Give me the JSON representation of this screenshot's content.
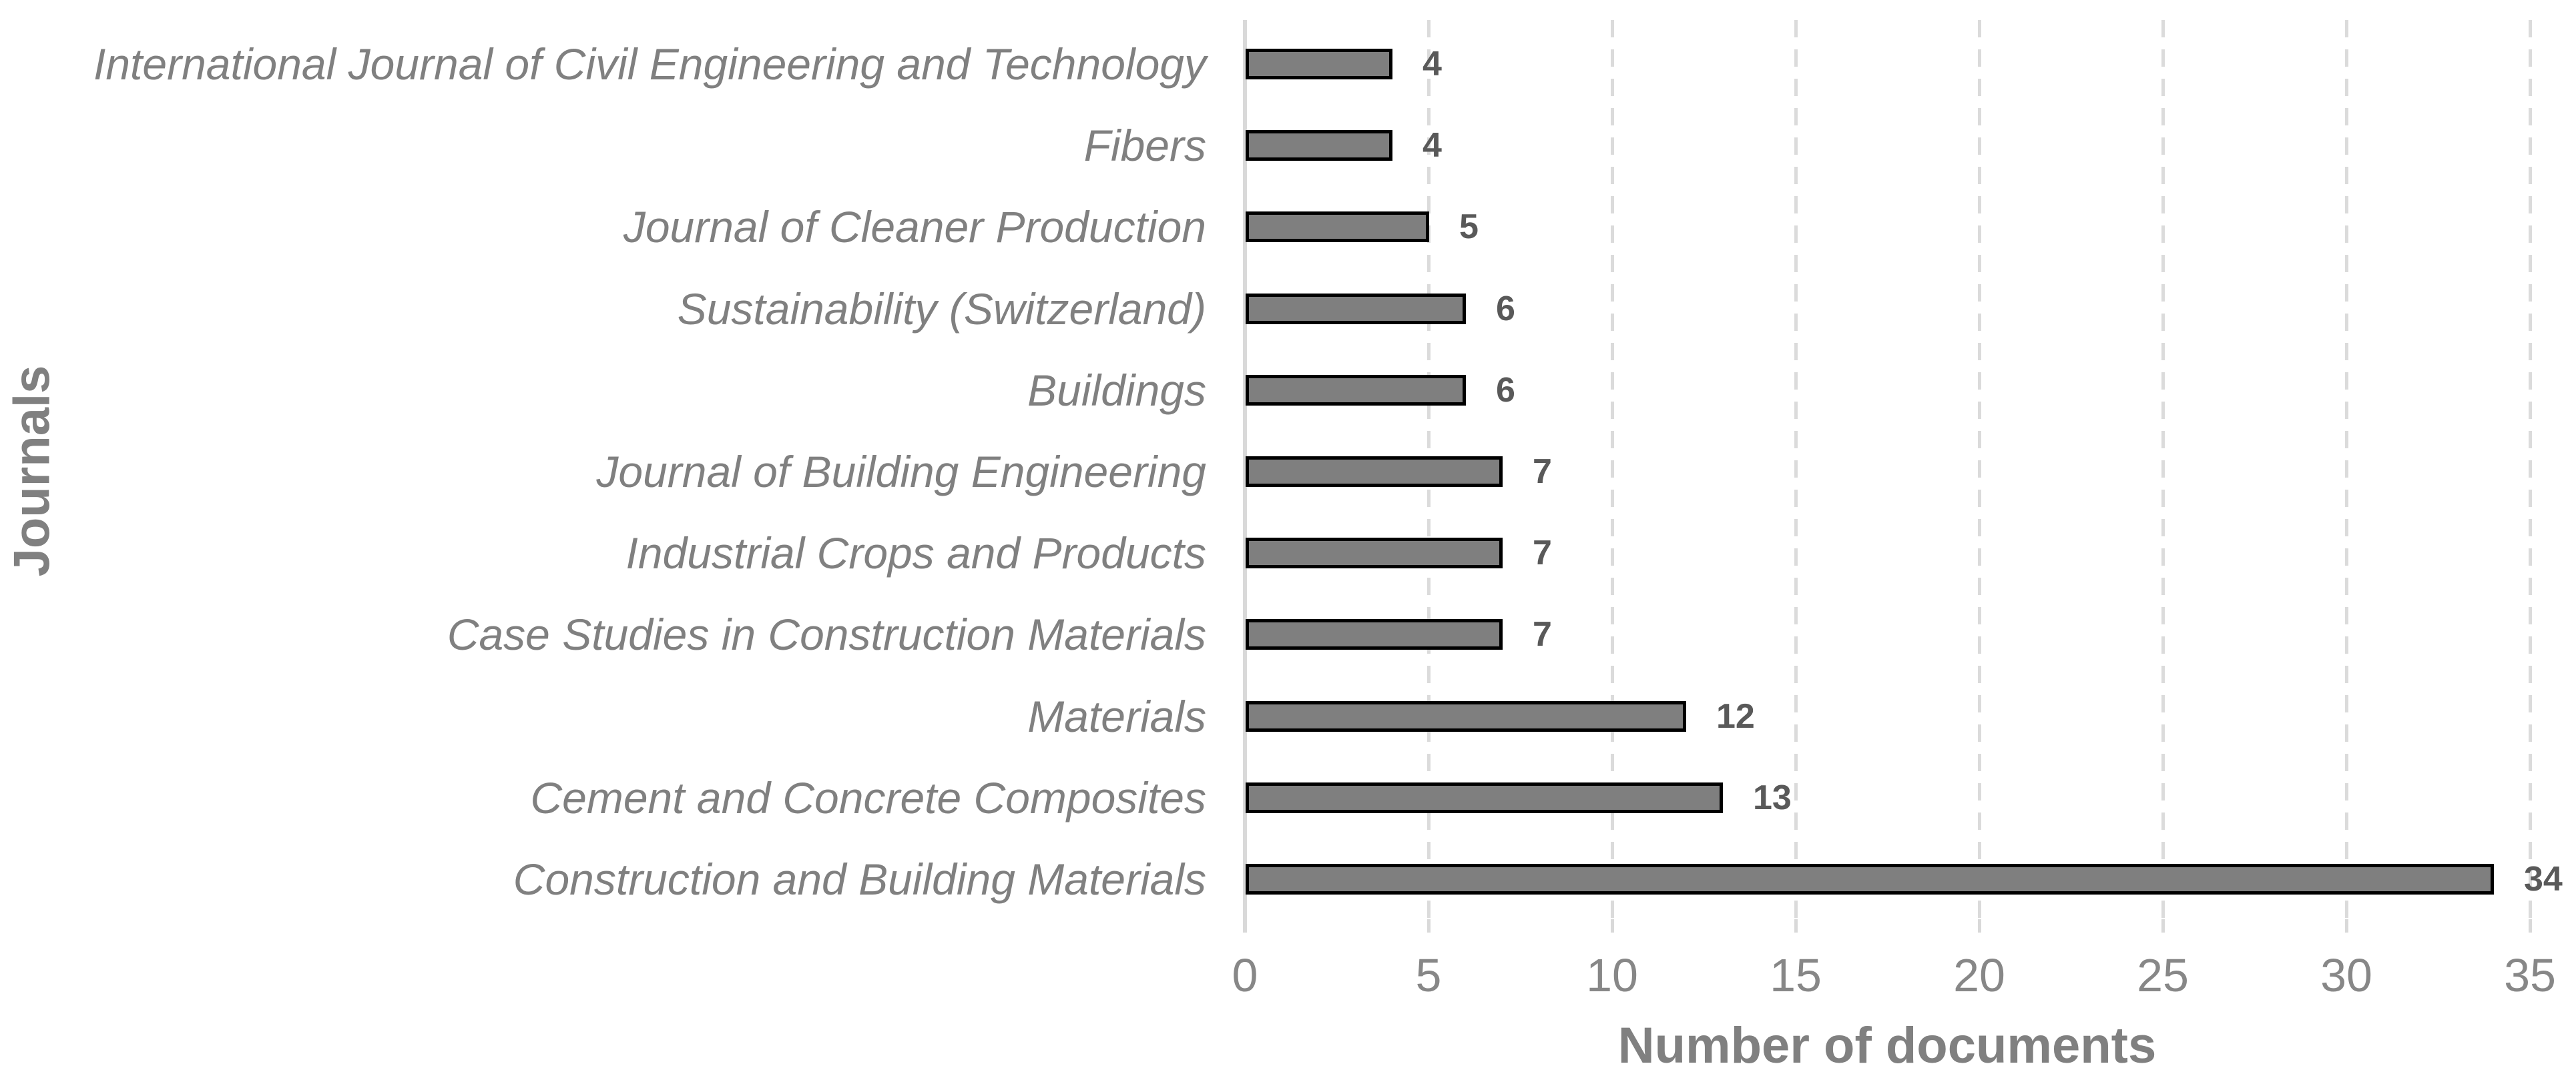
{
  "chart_data": {
    "type": "bar",
    "orientation": "horizontal",
    "title": "",
    "xlabel": "Number of documents",
    "ylabel": "Journals",
    "xlim": [
      0,
      35
    ],
    "xticks": [
      0,
      5,
      10,
      15,
      20,
      25,
      30,
      35
    ],
    "grid": "vertical-dashed",
    "legend": "none",
    "value_labels_shown": true,
    "categories": [
      "International Journal of Civil Engineering and Technology",
      "Fibers",
      "Journal of Cleaner Production",
      "Sustainability (Switzerland)",
      "Buildings",
      "Journal of Building Engineering",
      "Industrial Crops and Products",
      "Case Studies in Construction Materials",
      "Materials",
      "Cement and Concrete Composites",
      "Construction and Building Materials"
    ],
    "values": [
      4,
      4,
      5,
      6,
      6,
      7,
      7,
      7,
      12,
      13,
      34
    ]
  },
  "colors": {
    "background": "#FFFFFF",
    "bar_fill": "#7F7F7F",
    "bar_border": "#000000",
    "grid_line": "#DBDBDB",
    "axis_line": "#D9D9D9",
    "category_label": "#808080",
    "tick_label": "#878787",
    "value_label": "#595959",
    "axis_title": "#808080"
  }
}
